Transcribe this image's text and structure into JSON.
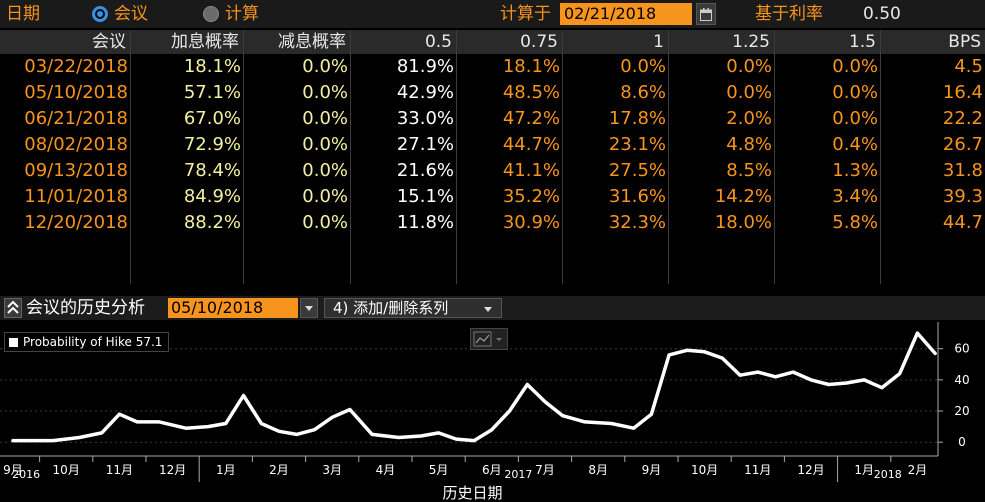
{
  "topbar": {
    "date_label": "日期",
    "meeting_label": "会议",
    "calc_label": "计算",
    "calc_at_label": "计算于",
    "calc_date": "02/21/2018",
    "base_rate_label": "基于利率",
    "base_rate": "0.50"
  },
  "table": {
    "headers": [
      "会议",
      "加息概率",
      "减息概率",
      "0.5",
      "0.75",
      "1",
      "1.25",
      "1.5",
      "BPS"
    ],
    "rows": [
      [
        "03/22/2018",
        "18.1%",
        "0.0%",
        "81.9%",
        "18.1%",
        "0.0%",
        "0.0%",
        "0.0%",
        "4.5"
      ],
      [
        "05/10/2018",
        "57.1%",
        "0.0%",
        "42.9%",
        "48.5%",
        "8.6%",
        "0.0%",
        "0.0%",
        "16.4"
      ],
      [
        "06/21/2018",
        "67.0%",
        "0.0%",
        "33.0%",
        "47.2%",
        "17.8%",
        "2.0%",
        "0.0%",
        "22.2"
      ],
      [
        "08/02/2018",
        "72.9%",
        "0.0%",
        "27.1%",
        "44.7%",
        "23.1%",
        "4.8%",
        "0.4%",
        "26.7"
      ],
      [
        "09/13/2018",
        "78.4%",
        "0.0%",
        "21.6%",
        "41.1%",
        "27.5%",
        "8.5%",
        "1.3%",
        "31.8"
      ],
      [
        "11/01/2018",
        "84.9%",
        "0.0%",
        "15.1%",
        "35.2%",
        "31.6%",
        "14.2%",
        "3.4%",
        "39.3"
      ],
      [
        "12/20/2018",
        "88.2%",
        "0.0%",
        "11.8%",
        "30.9%",
        "32.3%",
        "18.0%",
        "5.8%",
        "44.7"
      ]
    ]
  },
  "analysis": {
    "title": "会议的历史分析",
    "meeting_date": "05/10/2018",
    "series_button": "4) 添加/删除系列"
  },
  "chart_data": {
    "type": "line",
    "legend": "Probability of Hike 57.1",
    "xlabel": "历史日期",
    "ylim": [
      -5,
      72
    ],
    "yticks": [
      0,
      20,
      40,
      60
    ],
    "x_tick_labels": [
      "9月",
      "10月",
      "11月",
      "12月",
      "1月",
      "2月",
      "3月",
      "4月",
      "5月",
      "6月",
      "7月",
      "8月",
      "9月",
      "10月",
      "11月",
      "12月",
      "1月",
      "2月"
    ],
    "year_labels": [
      "2016",
      "2017",
      "2018"
    ],
    "x": [
      "2016-09",
      "2016-10",
      "2016-10",
      "2016-11",
      "2016-11",
      "2016-11",
      "2016-12",
      "2016-12",
      "2017-01",
      "2017-01",
      "2017-01",
      "2017-02",
      "2017-02",
      "2017-02",
      "2017-03",
      "2017-03",
      "2017-03",
      "2017-04",
      "2017-04",
      "2017-05",
      "2017-05",
      "2017-05",
      "2017-06",
      "2017-06",
      "2017-06",
      "2017-07",
      "2017-07",
      "2017-07",
      "2017-08",
      "2017-08",
      "2017-09",
      "2017-09",
      "2017-09",
      "2017-10",
      "2017-10",
      "2017-10",
      "2017-11",
      "2017-11",
      "2017-11",
      "2017-12",
      "2017-12",
      "2017-12",
      "2018-01",
      "2018-01",
      "2018-01",
      "2018-02",
      "2018-02",
      "2018-02"
    ],
    "values": [
      1,
      1,
      3,
      6,
      18,
      13,
      13,
      9,
      10,
      12,
      30,
      12,
      7,
      5,
      8,
      16,
      21,
      5,
      3,
      4,
      6,
      2,
      1,
      8,
      20,
      37,
      26,
      17,
      13,
      12,
      9,
      18,
      56,
      59,
      58,
      54,
      43,
      45,
      42,
      45,
      40,
      37,
      38,
      40,
      35,
      44,
      70,
      57
    ]
  }
}
